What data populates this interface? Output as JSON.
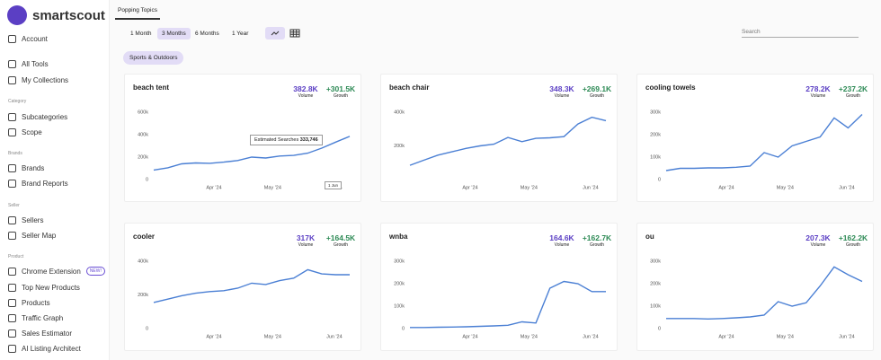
{
  "sidebar": {
    "brand": "smartscout",
    "items": [
      {
        "label": "Account",
        "y": 43
      },
      {
        "label": "All Tools"
      },
      {
        "label": "My Collections"
      },
      {
        "heading": "Category"
      },
      {
        "label": "Subcategories"
      },
      {
        "label": "Scope"
      },
      {
        "heading": "Brands"
      },
      {
        "label": "Brands"
      },
      {
        "label": "Brand Reports"
      },
      {
        "heading": "Seller"
      },
      {
        "label": "Sellers"
      },
      {
        "label": "Seller Map"
      },
      {
        "heading": "Product"
      },
      {
        "label": "Chrome Extension",
        "badge": "NEW!"
      },
      {
        "label": "Top New Products"
      },
      {
        "label": "Products"
      },
      {
        "label": "Traffic Graph"
      },
      {
        "label": "Sales Estimator"
      },
      {
        "label": "AI Listing Architect"
      }
    ]
  },
  "tab": "Popping Topics",
  "ranges": [
    "1 Month",
    "3 Months",
    "6 Months",
    "1 Year"
  ],
  "active_range": "3 Months",
  "search_placeholder": "Search",
  "chip": "Sports & Outdoors",
  "cards": [
    {
      "title": "beach tent",
      "volume": "382.8K",
      "volume_label": "Volume",
      "growth": "+301.5K",
      "growth_label": "Growth",
      "chart": {
        "type": "line",
        "color": "#4a7fd4",
        "xlim": [
          0,
          14
        ],
        "ylim": [
          0,
          600000
        ],
        "yticks": [
          0,
          {
            "value": 200000,
            "label": "200k"
          },
          {
            "value": 400000,
            "label": "400k"
          },
          {
            "value": 600000,
            "label": "600k"
          }
        ],
        "xticks": [
          {
            "value": 4.3,
            "label": "Apr '24"
          },
          {
            "value": 8.5,
            "label": "May '24"
          },
          {
            "value": 12.9,
            "label": "Jun '24"
          }
        ],
        "values": [
          85000,
          105000,
          140000,
          148000,
          145000,
          155000,
          170000,
          200000,
          192000,
          210000,
          215000,
          235000,
          280000,
          333746,
          385000
        ]
      },
      "tooltip": {
        "label": "Estimated Searches",
        "value": "333,746",
        "date": "1 Jun"
      }
    },
    {
      "title": "beach chair",
      "volume": "348.3K",
      "volume_label": "Volume",
      "growth": "+269.1K",
      "growth_label": "Growth",
      "chart": {
        "type": "line",
        "color": "#4a7fd4",
        "xlim": [
          0,
          14
        ],
        "ylim": [
          0,
          400000
        ],
        "yticks": [
          {
            "value": 200000,
            "label": "200k"
          },
          {
            "value": 400000,
            "label": "400k"
          }
        ],
        "xticks": [
          {
            "value": 4.3,
            "label": "Apr '24"
          },
          {
            "value": 8.5,
            "label": "May '24"
          },
          {
            "value": 12.9,
            "label": "Jun '24"
          }
        ],
        "values": [
          85000,
          115000,
          145000,
          165000,
          185000,
          200000,
          210000,
          250000,
          225000,
          245000,
          248000,
          255000,
          330000,
          370000,
          350000
        ]
      }
    },
    {
      "title": "cooling towels",
      "volume": "278.2K",
      "volume_label": "Volume",
      "growth": "+237.2K",
      "growth_label": "Growth",
      "chart": {
        "type": "line",
        "color": "#4a7fd4",
        "xlim": [
          0,
          14
        ],
        "ylim": [
          0,
          300000
        ],
        "yticks": [
          0,
          {
            "value": 100000,
            "label": "100k"
          },
          {
            "value": 200000,
            "label": "200k"
          },
          {
            "value": 300000,
            "label": "300k"
          }
        ],
        "xticks": [
          {
            "value": 4.3,
            "label": "Apr '24"
          },
          {
            "value": 8.5,
            "label": "May '24"
          },
          {
            "value": 12.9,
            "label": "Jun '24"
          }
        ],
        "values": [
          40000,
          50000,
          50000,
          52000,
          52000,
          55000,
          60000,
          120000,
          100000,
          150000,
          170000,
          190000,
          275000,
          230000,
          290000
        ]
      }
    },
    {
      "title": "cooler",
      "volume": "317K",
      "volume_label": "Volume",
      "growth": "+164.5K",
      "growth_label": "Growth",
      "chart": {
        "type": "line",
        "color": "#4a7fd4",
        "xlim": [
          0,
          14
        ],
        "ylim": [
          0,
          400000
        ],
        "yticks": [
          0,
          {
            "value": 200000,
            "label": "200k"
          },
          {
            "value": 400000,
            "label": "400k"
          }
        ],
        "xticks": [
          {
            "value": 4.3,
            "label": "Apr '24"
          },
          {
            "value": 8.5,
            "label": "May '24"
          },
          {
            "value": 12.9,
            "label": "Jun '24"
          }
        ],
        "values": [
          155000,
          175000,
          195000,
          210000,
          220000,
          225000,
          240000,
          270000,
          262000,
          285000,
          300000,
          350000,
          325000,
          320000,
          320000
        ]
      }
    },
    {
      "title": "wnba",
      "volume": "164.6K",
      "volume_label": "Volume",
      "growth": "+162.7K",
      "growth_label": "Growth",
      "chart": {
        "type": "line",
        "color": "#4a7fd4",
        "xlim": [
          0,
          14
        ],
        "ylim": [
          0,
          300000
        ],
        "yticks": [
          0,
          {
            "value": 100000,
            "label": "100k"
          },
          {
            "value": 200000,
            "label": "200k"
          },
          {
            "value": 300000,
            "label": "300k"
          }
        ],
        "xticks": [
          {
            "value": 4.3,
            "label": "Apr '24"
          },
          {
            "value": 8.5,
            "label": "May '24"
          },
          {
            "value": 12.9,
            "label": "Jun '24"
          }
        ],
        "values": [
          5000,
          5000,
          6000,
          7000,
          8000,
          10000,
          12000,
          15000,
          30000,
          25000,
          180000,
          210000,
          200000,
          165000,
          165000
        ]
      }
    },
    {
      "title": "ou",
      "volume": "207.3K",
      "volume_label": "Volume",
      "growth": "+162.2K",
      "growth_label": "Growth",
      "chart": {
        "type": "line",
        "color": "#4a7fd4",
        "xlim": [
          0,
          14
        ],
        "ylim": [
          0,
          300000
        ],
        "yticks": [
          0,
          {
            "value": 100000,
            "label": "100k"
          },
          {
            "value": 200000,
            "label": "200k"
          },
          {
            "value": 300000,
            "label": "300k"
          }
        ],
        "xticks": [
          {
            "value": 4.3,
            "label": "Apr '24"
          },
          {
            "value": 8.5,
            "label": "May '24"
          },
          {
            "value": 12.9,
            "label": "Jun '24"
          }
        ],
        "values": [
          45000,
          45000,
          45000,
          43000,
          45000,
          48000,
          52000,
          60000,
          120000,
          100000,
          115000,
          190000,
          275000,
          240000,
          210000
        ]
      }
    }
  ]
}
